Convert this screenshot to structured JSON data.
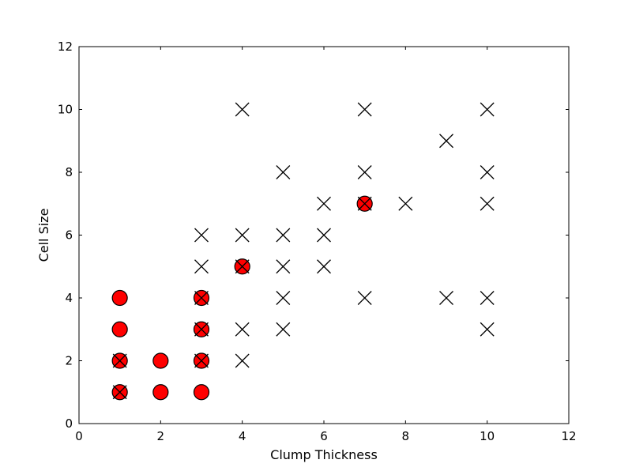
{
  "chart_data": {
    "type": "scatter",
    "title": "",
    "xlabel": "Clump Thickness",
    "ylabel": "Cell Size",
    "xlim": [
      0,
      12
    ],
    "ylim": [
      0,
      12
    ],
    "xticks": [
      0,
      2,
      4,
      6,
      8,
      10,
      12
    ],
    "yticks": [
      0,
      2,
      4,
      6,
      8,
      10,
      12
    ],
    "grid": false,
    "series": [
      {
        "marker": "circle",
        "color": "#ff0000",
        "edge_color": "#000000",
        "points": [
          [
            1,
            1
          ],
          [
            1,
            2
          ],
          [
            1,
            3
          ],
          [
            1,
            4
          ],
          [
            2,
            1
          ],
          [
            2,
            2
          ],
          [
            3,
            1
          ],
          [
            3,
            2
          ],
          [
            3,
            3
          ],
          [
            3,
            4
          ],
          [
            4,
            5
          ],
          [
            7,
            7
          ]
        ]
      },
      {
        "marker": "x",
        "color": "#000000",
        "points": [
          [
            1,
            1
          ],
          [
            1,
            2
          ],
          [
            3,
            2
          ],
          [
            3,
            3
          ],
          [
            3,
            4
          ],
          [
            3,
            5
          ],
          [
            3,
            6
          ],
          [
            4,
            2
          ],
          [
            4,
            3
          ],
          [
            4,
            5
          ],
          [
            4,
            6
          ],
          [
            4,
            10
          ],
          [
            5,
            3
          ],
          [
            5,
            4
          ],
          [
            5,
            5
          ],
          [
            5,
            6
          ],
          [
            5,
            8
          ],
          [
            6,
            5
          ],
          [
            6,
            6
          ],
          [
            6,
            7
          ],
          [
            7,
            4
          ],
          [
            7,
            7
          ],
          [
            7,
            8
          ],
          [
            7,
            10
          ],
          [
            8,
            7
          ],
          [
            9,
            4
          ],
          [
            9,
            9
          ],
          [
            10,
            3
          ],
          [
            10,
            4
          ],
          [
            10,
            7
          ],
          [
            10,
            8
          ],
          [
            10,
            10
          ]
        ]
      }
    ]
  }
}
